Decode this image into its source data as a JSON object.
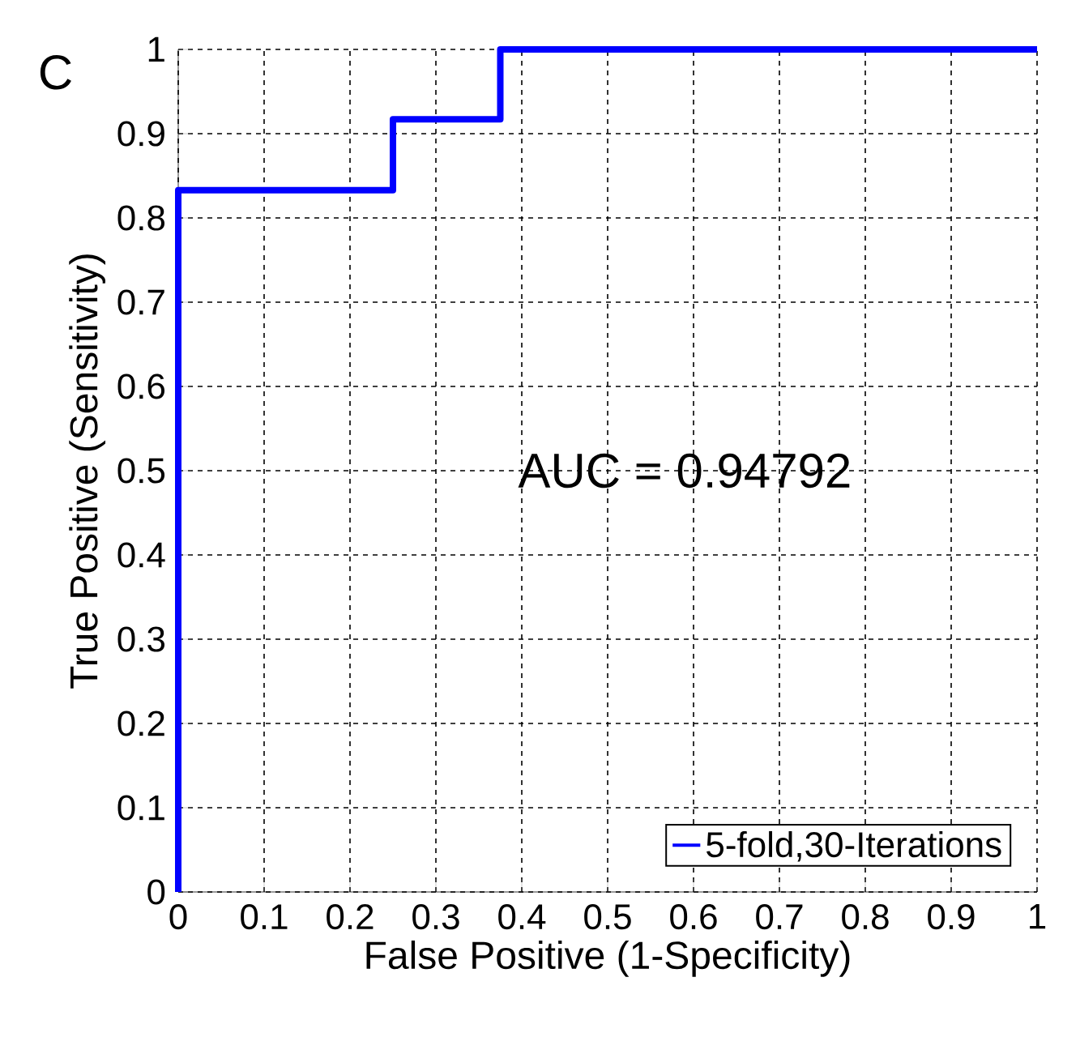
{
  "chart_data": {
    "type": "line",
    "xlabel": "False Positive (1-Specificity)",
    "ylabel": "True Positive (Sensitivity)",
    "x": [
      0,
      0,
      0.25,
      0.25,
      0.375,
      0.375,
      1
    ],
    "series": [
      {
        "name": "5-fold,30-Iterations",
        "color": "#0000ff",
        "values": [
          0,
          0.833,
          0.833,
          0.917,
          0.917,
          1,
          1
        ]
      }
    ],
    "xlim": [
      0,
      1
    ],
    "ylim": [
      0,
      1
    ],
    "xticks": [
      0,
      0.1,
      0.2,
      0.3,
      0.4,
      0.5,
      0.6,
      0.7,
      0.8,
      0.9,
      1
    ],
    "yticks": [
      0,
      0.1,
      0.2,
      0.3,
      0.4,
      0.5,
      0.6,
      0.7,
      0.8,
      0.9,
      1
    ],
    "grid": true,
    "legend": "bottom right",
    "marker": "none",
    "line_style": "solid",
    "annotations": [
      "C",
      "AUC = 0.94792"
    ]
  }
}
